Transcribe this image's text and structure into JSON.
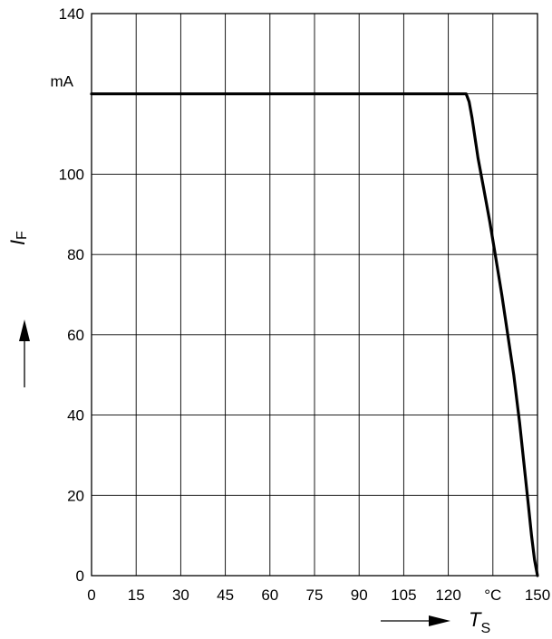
{
  "chart_data": {
    "type": "line",
    "x": [
      0,
      5,
      10,
      15,
      20,
      25,
      30,
      35,
      40,
      45,
      50,
      55,
      60,
      65,
      70,
      75,
      80,
      85,
      90,
      95,
      100,
      105,
      110,
      115,
      120,
      126,
      127,
      128,
      129,
      130,
      132,
      134,
      136,
      138,
      140,
      142,
      144,
      146,
      147,
      148,
      149,
      150
    ],
    "series": [
      {
        "values": [
          120,
          120,
          120,
          120,
          120,
          120,
          120,
          120,
          120,
          120,
          120,
          120,
          120,
          120,
          120,
          120,
          120,
          120,
          120,
          120,
          120,
          120,
          120,
          120,
          120,
          120,
          118,
          114,
          109,
          104,
          96,
          88,
          79,
          70,
          60,
          50,
          38,
          24,
          17,
          10,
          4,
          0
        ]
      }
    ],
    "xticks": [
      "0",
      "15",
      "30",
      "45",
      "60",
      "75",
      "90",
      "105",
      "120",
      "150"
    ],
    "xtick_values": [
      0,
      15,
      30,
      45,
      60,
      75,
      90,
      105,
      120,
      150
    ],
    "xunit": "°C",
    "yticks": [
      "0",
      "20",
      "40",
      "60",
      "80",
      "100",
      "140"
    ],
    "ytick_values": [
      0,
      20,
      40,
      60,
      80,
      100,
      140
    ],
    "yunit": "mA",
    "xlabel": "T",
    "xlabel_sub": "S",
    "ylabel": "I",
    "ylabel_sub": "F",
    "xlim": [
      0,
      150
    ],
    "ylim": [
      0,
      140
    ],
    "grid": true,
    "x_grid_step": 15,
    "y_grid_step": 20,
    "colors": {
      "line": "#000000",
      "grid": "#000000",
      "background": "#ffffff"
    }
  }
}
